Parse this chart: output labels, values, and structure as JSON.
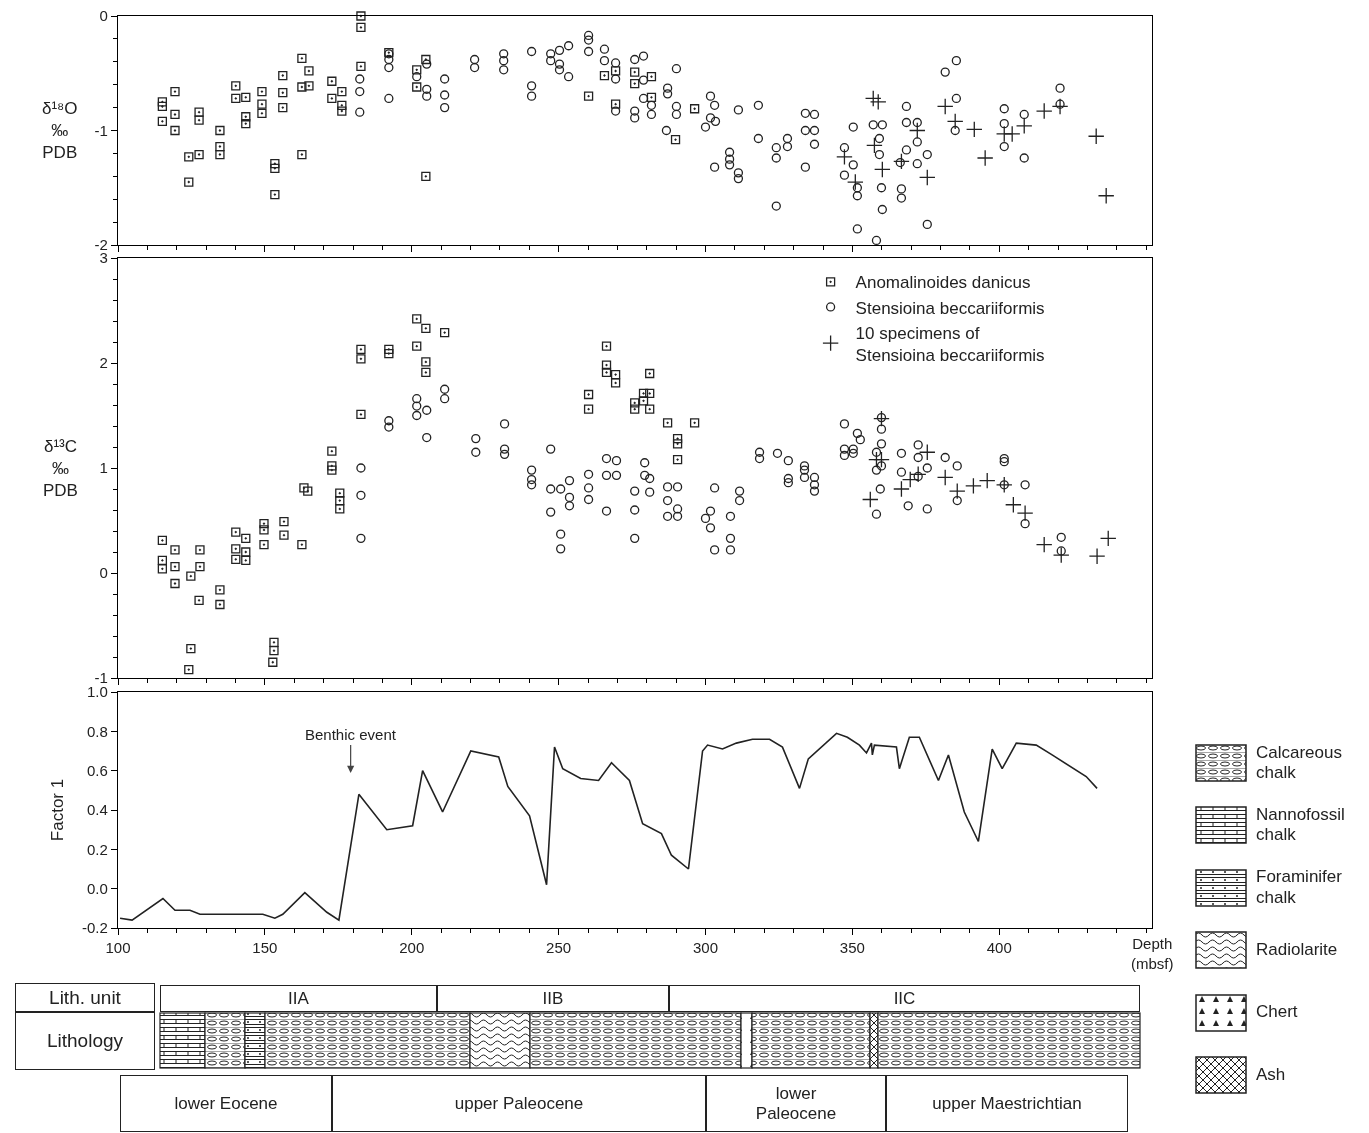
{
  "chart_data": [
    {
      "type": "scatter",
      "ylabel": "δ¹⁸O\n‰\nPDB",
      "xlim": [
        100,
        452
      ],
      "xticks": [
        100,
        150,
        200,
        250,
        300,
        350,
        400
      ],
      "ylim": [
        -2,
        0
      ],
      "yticks": [
        -2,
        -1,
        0
      ],
      "tick_labels": "y",
      "series": [
        {
          "marker": "square",
          "color": "#222222",
          "x": [
            115.1,
            115.1,
            115.1,
            119.4,
            119.4,
            119.4,
            124.1,
            124.1,
            127.6,
            127.6,
            127.6,
            134.7,
            134.7,
            134.7,
            140.1,
            140.1,
            143.5,
            143.5,
            143.5,
            149,
            149,
            149,
            153.4,
            153.4,
            153.4,
            156.1,
            156.1,
            156.1,
            162.6,
            162.6,
            162.6,
            165,
            165,
            172.8,
            172.8,
            176.2,
            176.2,
            176.2,
            182.7,
            182.7,
            182.7,
            192.2,
            201.7,
            201.7,
            204.8,
            204.8,
            260.2,
            265.6,
            269.4,
            269.4,
            275.9,
            275.9,
            281.6,
            281.6,
            289.8,
            296.3
          ],
          "values": [
            -0.75,
            -0.79,
            -0.92,
            -0.66,
            -0.86,
            -1.0,
            -1.23,
            -1.45,
            -0.84,
            -0.91,
            -1.21,
            -1.0,
            -1.14,
            -1.21,
            -0.61,
            -0.72,
            -0.71,
            -0.88,
            -0.94,
            -0.66,
            -0.77,
            -0.85,
            -1.29,
            -1.33,
            -1.56,
            -0.52,
            -0.67,
            -0.8,
            -0.37,
            -0.62,
            -1.21,
            -0.48,
            -0.61,
            -0.57,
            -0.72,
            -0.66,
            -0.78,
            -0.83,
            0.0,
            -0.1,
            -0.44,
            -0.32,
            -0.47,
            -0.62,
            -0.38,
            -1.4,
            -0.7,
            -0.52,
            -0.48,
            -0.77,
            -0.49,
            -0.59,
            -0.53,
            -0.71,
            -1.08,
            -0.81
          ]
        },
        {
          "marker": "circle",
          "color": "#222222",
          "x": [
            182.3,
            182.3,
            182.3,
            192.2,
            192.2,
            192.2,
            192.2,
            201.7,
            205.1,
            205.1,
            205.1,
            211.2,
            211.2,
            211.2,
            221.4,
            221.4,
            231.3,
            231.3,
            231.3,
            240.8,
            240.8,
            240.8,
            247.3,
            247.3,
            250.3,
            250.3,
            250.3,
            253.4,
            253.4,
            260.2,
            260.2,
            260.2,
            265.6,
            265.6,
            269.4,
            269.4,
            269.4,
            275.9,
            278.9,
            278.9,
            275.9,
            275.9,
            278.9,
            281.6,
            281.6,
            290.1,
            287.1,
            287.1,
            290.1,
            290.1,
            286.7,
            301.7,
            303.1,
            301.7,
            300,
            303.4,
            311.2,
            318,
            318,
            308.2,
            308.2,
            308.2,
            303.1,
            311.2,
            311.2,
            324.1,
            324.1,
            327.9,
            327.9,
            324.1,
            334,
            337.1,
            334,
            337.1,
            337.1,
            334,
            347.3,
            350.3,
            347.3,
            350.3,
            351.7,
            351.7,
            351.7,
            357.1,
            360.2,
            359.2,
            359.2,
            359.9,
            360.2,
            358.2,
            368.4,
            368.4,
            372.1,
            368.4,
            366.3,
            366.7,
            366.7,
            372.1,
            375.5,
            372.1,
            375.5,
            381.6,
            385.4,
            385.4,
            385,
            401.7,
            401.7,
            401.7,
            408.5,
            408.5,
            420.7,
            420.7
          ],
          "values": [
            -0.55,
            -0.66,
            -0.84,
            -0.33,
            -0.38,
            -0.45,
            -0.72,
            -0.53,
            -0.42,
            -0.64,
            -0.7,
            -0.55,
            -0.69,
            -0.8,
            -0.38,
            -0.45,
            -0.33,
            -0.39,
            -0.47,
            -0.31,
            -0.61,
            -0.7,
            -0.33,
            -0.39,
            -0.3,
            -0.42,
            -0.47,
            -0.26,
            -0.53,
            -0.17,
            -0.21,
            -0.31,
            -0.29,
            -0.39,
            -0.41,
            -0.55,
            -0.83,
            -0.38,
            -0.35,
            -0.56,
            -0.83,
            -0.89,
            -0.72,
            -0.78,
            -0.86,
            -0.46,
            -0.63,
            -0.68,
            -0.79,
            -0.86,
            -1.0,
            -0.7,
            -0.78,
            -0.89,
            -0.97,
            -0.92,
            -0.82,
            -0.78,
            -1.07,
            -1.19,
            -1.25,
            -1.3,
            -1.32,
            -1.37,
            -1.42,
            -1.15,
            -1.24,
            -1.07,
            -1.14,
            -1.66,
            -0.85,
            -0.86,
            -1.0,
            -1.0,
            -1.12,
            -1.32,
            -1.15,
            -0.97,
            -1.39,
            -1.3,
            -1.5,
            -1.57,
            -1.86,
            -0.95,
            -0.95,
            -1.07,
            -1.21,
            -1.5,
            -1.69,
            -1.96,
            -0.79,
            -0.93,
            -0.93,
            -1.17,
            -1.28,
            -1.51,
            -1.59,
            -1.1,
            -1.21,
            -1.29,
            -1.82,
            -0.49,
            -0.39,
            -0.72,
            -1.0,
            -0.81,
            -0.94,
            -1.14,
            -0.86,
            -1.24,
            -0.63,
            -0.77
          ]
        },
        {
          "marker": "cross",
          "color": "#222222",
          "x": [
            357.1,
            358.8,
            347.3,
            351,
            357.5,
            360.2,
            366.7,
            372.1,
            375.5,
            381.6,
            385,
            391.5,
            395.2,
            401.7,
            404.4,
            408.5,
            415.3,
            420.7,
            433,
            436.4
          ],
          "values": [
            -0.72,
            -0.75,
            -1.23,
            -1.45,
            -1.13,
            -1.34,
            -1.27,
            -1.0,
            -1.41,
            -0.79,
            -0.92,
            -0.99,
            -1.24,
            -1.03,
            -1.03,
            -0.96,
            -0.83,
            -0.79,
            -1.05,
            -1.57
          ]
        }
      ]
    },
    {
      "type": "scatter",
      "ylabel": "δ¹³C\n‰\nPDB",
      "xlim": [
        100,
        452
      ],
      "xticks": [
        100,
        150,
        200,
        250,
        300,
        350,
        400
      ],
      "ylim": [
        -1,
        3
      ],
      "yticks": [
        -1,
        0,
        1,
        2,
        3
      ],
      "tick_labels": "y",
      "legend": "top right",
      "series": [
        {
          "name": "Anomalinoides danicus",
          "marker": "square",
          "color": "#222222",
          "x": [
            115.1,
            115.1,
            115.1,
            119.4,
            119.4,
            119.4,
            124.8,
            124.8,
            124.1,
            127.9,
            127.9,
            127.6,
            134.7,
            134.7,
            140.1,
            140.1,
            140.1,
            143.5,
            143.5,
            143.5,
            149.7,
            149.7,
            149.7,
            153.1,
            153.1,
            152.7,
            156.5,
            156.5,
            162.6,
            163.3,
            164.6,
            172.8,
            172.8,
            172.8,
            175.5,
            175.5,
            175.5,
            182.7,
            182.7,
            182.7,
            192.2,
            192.2,
            201.7,
            204.8,
            201.7,
            204.8,
            204.8,
            211.2,
            266.3,
            266.3,
            266.3,
            269.4,
            269.4,
            260.2,
            260.2,
            275.9,
            275.9,
            278.9,
            278.9,
            281,
            281,
            281,
            287.1,
            296.3,
            290.5,
            290.5,
            290.5
          ],
          "values": [
            0.31,
            0.12,
            0.04,
            0.22,
            0.06,
            -0.1,
            -0.03,
            -0.72,
            -0.92,
            0.22,
            0.06,
            -0.26,
            -0.16,
            -0.3,
            0.39,
            0.23,
            0.13,
            0.33,
            0.2,
            0.12,
            0.47,
            0.41,
            0.27,
            -0.66,
            -0.74,
            -0.85,
            0.49,
            0.36,
            0.27,
            0.81,
            0.78,
            1.16,
            1.02,
            0.98,
            0.76,
            0.69,
            0.61,
            2.13,
            2.04,
            1.51,
            2.13,
            2.09,
            2.42,
            2.33,
            2.16,
            2.01,
            1.91,
            2.29,
            2.16,
            1.98,
            1.91,
            1.89,
            1.81,
            1.7,
            1.56,
            1.62,
            1.56,
            1.71,
            1.64,
            1.9,
            1.71,
            1.56,
            1.43,
            1.43,
            1.28,
            1.23,
            1.08
          ]
        },
        {
          "name": "Stensioina beccariiformis",
          "marker": "circle",
          "color": "#222222",
          "x": [
            182.7,
            182.7,
            182.7,
            192.2,
            192.2,
            201.7,
            201.7,
            201.7,
            205.1,
            205.1,
            211.2,
            211.2,
            221.8,
            221.8,
            231.6,
            231.6,
            231.6,
            240.8,
            240.8,
            240.8,
            247.3,
            247.3,
            247.3,
            250.7,
            250.7,
            250.7,
            253.7,
            253.7,
            253.7,
            260.2,
            260.2,
            260.2,
            266.3,
            266.3,
            266.3,
            269.7,
            269.7,
            275.9,
            275.9,
            275.9,
            279.3,
            279.3,
            281,
            281,
            287.1,
            290.5,
            287.1,
            287.1,
            290.5,
            290.5,
            301.7,
            300,
            301.7,
            303.1,
            303.1,
            308.5,
            308.5,
            308.5,
            311.6,
            311.6,
            318.4,
            318.4,
            324.5,
            328.2,
            328.2,
            328.2,
            333.7,
            333.7,
            333.7,
            337.1,
            337.1,
            337.1,
            347.3,
            347.3,
            347.3,
            350.3,
            350.3,
            351.7,
            352.7,
            359.9,
            359.9,
            359.9,
            358.2,
            358.2,
            359.9,
            359.5,
            358.2,
            366.7,
            366.7,
            372.4,
            372.4,
            375.5,
            372.4,
            369,
            375.5,
            381.6,
            385.7,
            385.7,
            401.7,
            401.7,
            401.7,
            408.8,
            408.8,
            421.1,
            421.1
          ],
          "values": [
            1.0,
            0.74,
            0.33,
            1.45,
            1.39,
            1.66,
            1.59,
            1.5,
            1.55,
            1.29,
            1.75,
            1.66,
            1.28,
            1.15,
            1.42,
            1.18,
            1.13,
            0.98,
            0.89,
            0.84,
            1.18,
            0.8,
            0.58,
            0.8,
            0.37,
            0.23,
            0.88,
            0.72,
            0.64,
            0.94,
            0.81,
            0.7,
            1.09,
            0.93,
            0.59,
            1.07,
            0.93,
            0.78,
            0.6,
            0.33,
            1.05,
            0.93,
            0.9,
            0.77,
            0.82,
            0.82,
            0.69,
            0.54,
            0.61,
            0.54,
            0.59,
            0.52,
            0.43,
            0.22,
            0.81,
            0.54,
            0.33,
            0.22,
            0.78,
            0.69,
            1.15,
            1.09,
            1.14,
            1.07,
            0.9,
            0.86,
            1.02,
            0.98,
            0.91,
            0.91,
            0.84,
            0.78,
            1.42,
            1.18,
            1.12,
            1.18,
            1.14,
            1.33,
            1.27,
            1.48,
            1.37,
            1.23,
            1.15,
            0.98,
            1.02,
            0.8,
            0.56,
            1.14,
            0.96,
            1.22,
            1.1,
            1.0,
            0.92,
            0.64,
            0.61,
            1.1,
            1.02,
            0.69,
            1.09,
            1.06,
            0.84,
            0.84,
            0.47,
            0.34,
            0.21
          ]
        },
        {
          "name": "10 specimens of\nStensioina beccariiformis",
          "marker": "cross",
          "color": "#222222",
          "x": [
            359.9,
            359.9,
            358.2,
            356.1,
            366.7,
            369.7,
            372.4,
            375.5,
            381.6,
            385.7,
            391.2,
            395.9,
            401.7,
            404.8,
            408.8,
            415.3,
            421.1,
            433.3,
            437.1
          ],
          "values": [
            1.47,
            1.08,
            1.08,
            0.7,
            0.8,
            0.89,
            0.94,
            1.15,
            0.91,
            0.78,
            0.83,
            0.88,
            0.84,
            0.65,
            0.57,
            0.27,
            0.17,
            0.16,
            0.33
          ]
        }
      ]
    },
    {
      "type": "line",
      "ylabel": "Factor 1",
      "xlabel": "Depth\n(mbsf)",
      "xlim": [
        100,
        452
      ],
      "xticks": [
        100,
        150,
        200,
        250,
        300,
        350,
        400
      ],
      "ylim": [
        -0.2,
        1
      ],
      "yticks": [
        -0.2,
        {
          "value": 0,
          "label": "0.0"
        },
        0.2,
        0.4,
        0.6,
        0.8,
        {
          "value": 1,
          "label": "1.0"
        }
      ],
      "annotations": [
        "Benthic event"
      ],
      "series": [
        {
          "color": "#222222",
          "x": [
            100.7,
            104.8,
            115.3,
            119.4,
            124.5,
            127.9,
            134.7,
            143.9,
            149.3,
            153.4,
            156.1,
            163.6,
            171.1,
            175.2,
            182,
            191.5,
            200.3,
            203.7,
            210.5,
            220.1,
            229.6,
            232.7,
            240.1,
            245.9,
            248.6,
            251.4,
            257.5,
            263.6,
            268,
            274.1,
            278.6,
            285,
            288.4,
            294.2,
            299,
            300.7,
            305.8,
            310.5,
            316,
            321.8,
            326.2,
            332,
            335,
            344.6,
            348.3,
            352.4,
            354.8,
            356.5,
            356.8,
            357.5,
            365,
            366,
            369.4,
            372.8,
            379.3,
            382.7,
            388.1,
            392.9,
            397.6,
            401,
            405.8,
            412.6,
            418,
            429.6,
            433.3
          ],
          "values": [
            -0.15,
            -0.16,
            -0.05,
            -0.11,
            -0.11,
            -0.13,
            -0.13,
            -0.13,
            -0.13,
            -0.15,
            -0.13,
            -0.02,
            -0.12,
            -0.16,
            0.48,
            0.3,
            0.32,
            0.6,
            0.39,
            0.7,
            0.67,
            0.52,
            0.37,
            0.02,
            0.72,
            0.61,
            0.56,
            0.55,
            0.64,
            0.55,
            0.33,
            0.28,
            0.17,
            0.1,
            0.7,
            0.73,
            0.71,
            0.74,
            0.76,
            0.76,
            0.72,
            0.51,
            0.66,
            0.79,
            0.77,
            0.73,
            0.69,
            0.74,
            0.68,
            0.73,
            0.72,
            0.61,
            0.77,
            0.77,
            0.55,
            0.68,
            0.39,
            0.24,
            0.71,
            0.61,
            0.74,
            0.73,
            0.68,
            0.57,
            0.51
          ]
        }
      ]
    },
    {
      "type": "other",
      "ylabel": "Lith. unit",
      "annotations": [
        "IIA",
        "IIB",
        "IIC"
      ]
    },
    {
      "type": "other",
      "ylabel": "Lithology",
      "annotations": [
        "Calcareous\nchalk",
        "Nannofossil\nchalk",
        "Foraminifer\nchalk",
        "Radiolarite",
        "Chert",
        "Ash"
      ]
    },
    {
      "type": "other",
      "annotations": [
        "lower Eocene",
        "upper Paleocene",
        "lower\nPaleocene",
        "upper Maestrichtian"
      ]
    }
  ]
}
